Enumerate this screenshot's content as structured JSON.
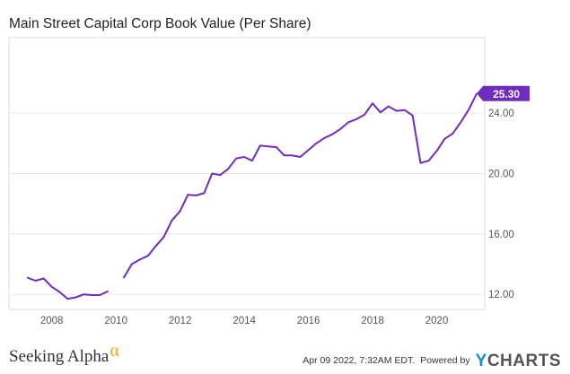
{
  "chart_data": {
    "type": "line",
    "title": "Main Street Capital Corp Book Value (Per Share)",
    "series": [
      {
        "color": "#6f2dbd",
        "points": [
          [
            "2007-03-31",
            13.1
          ],
          [
            "2007-06-30",
            12.9
          ],
          [
            "2007-09-30",
            13.05
          ],
          [
            "2007-12-31",
            12.5
          ],
          [
            "2008-03-31",
            12.15
          ],
          [
            "2008-06-30",
            11.7
          ],
          [
            "2008-09-30",
            11.8
          ],
          [
            "2008-12-31",
            12.0
          ],
          [
            "2009-03-31",
            11.95
          ],
          [
            "2009-06-30",
            11.95
          ],
          [
            "2009-09-30",
            12.2
          ],
          null,
          [
            "2010-03-31",
            13.1
          ],
          [
            "2010-06-30",
            14.0
          ],
          [
            "2010-09-30",
            14.3
          ],
          [
            "2010-12-31",
            14.55
          ],
          [
            "2011-03-31",
            15.2
          ],
          [
            "2011-06-30",
            15.8
          ],
          [
            "2011-09-30",
            16.9
          ],
          [
            "2011-12-31",
            17.5
          ],
          [
            "2012-03-31",
            18.6
          ],
          [
            "2012-06-30",
            18.55
          ],
          [
            "2012-09-30",
            18.7
          ],
          [
            "2012-12-31",
            20.0
          ],
          [
            "2013-03-31",
            19.9
          ],
          [
            "2013-06-30",
            20.3
          ],
          [
            "2013-09-30",
            21.0
          ],
          [
            "2013-12-31",
            21.1
          ],
          [
            "2014-03-31",
            20.85
          ],
          [
            "2014-06-30",
            21.85
          ],
          [
            "2014-09-30",
            21.8
          ],
          [
            "2014-12-31",
            21.75
          ],
          [
            "2015-03-31",
            21.2
          ],
          [
            "2015-06-30",
            21.2
          ],
          [
            "2015-09-30",
            21.1
          ],
          [
            "2015-12-31",
            21.55
          ],
          [
            "2016-03-31",
            22.0
          ],
          [
            "2016-06-30",
            22.35
          ],
          [
            "2016-09-30",
            22.6
          ],
          [
            "2016-12-31",
            22.95
          ],
          [
            "2017-03-31",
            23.4
          ],
          [
            "2017-06-30",
            23.6
          ],
          [
            "2017-09-30",
            23.9
          ],
          [
            "2017-12-31",
            24.65
          ],
          [
            "2018-03-31",
            24.05
          ],
          [
            "2018-06-30",
            24.45
          ],
          [
            "2018-09-30",
            24.15
          ],
          [
            "2018-12-31",
            24.2
          ],
          [
            "2019-03-31",
            23.85
          ],
          [
            "2019-06-30",
            20.7
          ],
          [
            "2019-09-30",
            20.85
          ],
          [
            "2019-12-31",
            21.5
          ],
          [
            "2020-03-31",
            22.3
          ],
          [
            "2020-06-30",
            22.65
          ],
          [
            "2020-09-30",
            23.4
          ],
          [
            "2020-12-31",
            24.25
          ],
          [
            "2021-03-31",
            25.3
          ]
        ]
      }
    ],
    "x_ticks": [
      "2008",
      "2010",
      "2012",
      "2014",
      "2016",
      "2018",
      "2020"
    ],
    "y_ticks": [
      "12.00",
      "16.00",
      "20.00",
      "24.00"
    ],
    "y_tick_values": [
      12,
      16,
      20,
      24
    ],
    "x_range": [
      "2006-09-01",
      "2021-06-30"
    ],
    "ylim": [
      11.0,
      29.0
    ],
    "y_axis_side": "right",
    "grid": "horizontal",
    "last_value_label": "25.30"
  },
  "footer": {
    "brand_name": "Seeking Alpha",
    "brand_mark": "α",
    "timestamp": "Apr 09 2022, 7:32AM EDT.",
    "powered_by": "Powered by",
    "logo_y": "Y",
    "logo_rest": "CHARTS"
  }
}
